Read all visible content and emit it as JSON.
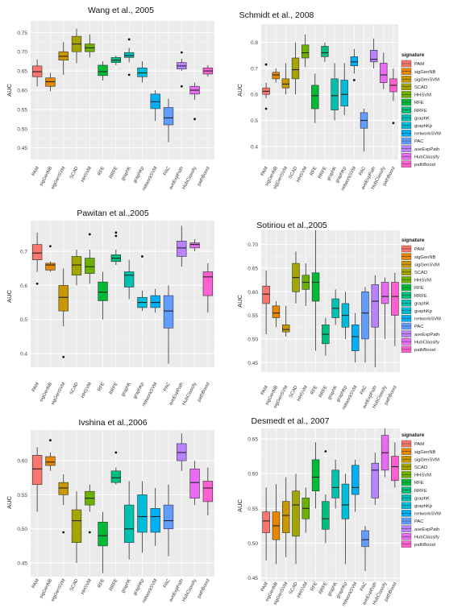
{
  "chart_data": [
    {
      "type": "box",
      "title": "Wang et al., 2005",
      "ylabel": "AUC",
      "ylim": [
        0.42,
        0.78
      ],
      "yticks": [
        0.45,
        0.5,
        0.55,
        0.6,
        0.65,
        0.7,
        0.75
      ],
      "ytick_labels": [
        "0.45",
        "0.50",
        "0.55",
        "0.60",
        "0.65",
        "0.70",
        "0.75"
      ],
      "grid": true,
      "legend": false,
      "categories": [
        "PAM",
        "sigGenNB",
        "sigGenSVM",
        "SCAD",
        "HHSVM",
        "RFE",
        "RRFE",
        "graphK",
        "graphKp",
        "networkSVM",
        "PAC",
        "aveExpPath",
        "HubClassify",
        "pathBoost"
      ],
      "boxes": [
        {
          "min": 0.61,
          "q1": 0.635,
          "median": 0.648,
          "q3": 0.663,
          "max": 0.68,
          "outliers": []
        },
        {
          "min": 0.597,
          "q1": 0.61,
          "median": 0.622,
          "q3": 0.632,
          "max": 0.645,
          "outliers": []
        },
        {
          "min": 0.64,
          "q1": 0.678,
          "median": 0.688,
          "q3": 0.7,
          "max": 0.725,
          "outliers": []
        },
        {
          "min": 0.67,
          "q1": 0.7,
          "median": 0.72,
          "q3": 0.74,
          "max": 0.76,
          "outliers": []
        },
        {
          "min": 0.685,
          "q1": 0.7,
          "median": 0.71,
          "q3": 0.72,
          "max": 0.745,
          "outliers": []
        },
        {
          "min": 0.625,
          "q1": 0.638,
          "median": 0.648,
          "q3": 0.665,
          "max": 0.675,
          "outliers": []
        },
        {
          "min": 0.665,
          "q1": 0.672,
          "median": 0.678,
          "q3": 0.685,
          "max": 0.69,
          "outliers": []
        },
        {
          "min": 0.672,
          "q1": 0.685,
          "median": 0.69,
          "q3": 0.698,
          "max": 0.71,
          "outliers": [
            0.732,
            0.64
          ]
        },
        {
          "min": 0.62,
          "q1": 0.635,
          "median": 0.645,
          "q3": 0.658,
          "max": 0.675,
          "outliers": []
        },
        {
          "min": 0.52,
          "q1": 0.552,
          "median": 0.57,
          "q3": 0.59,
          "max": 0.6,
          "outliers": []
        },
        {
          "min": 0.465,
          "q1": 0.51,
          "median": 0.528,
          "q3": 0.555,
          "max": 0.578,
          "outliers": []
        },
        {
          "min": 0.65,
          "q1": 0.655,
          "median": 0.663,
          "q3": 0.672,
          "max": 0.682,
          "outliers": [
            0.698,
            0.61
          ]
        },
        {
          "min": 0.575,
          "q1": 0.59,
          "median": 0.6,
          "q3": 0.61,
          "max": 0.62,
          "outliers": [
            0.525
          ]
        },
        {
          "min": 0.635,
          "q1": 0.642,
          "median": 0.65,
          "q3": 0.658,
          "max": 0.665,
          "outliers": []
        }
      ]
    },
    {
      "type": "box",
      "title": "Schmidt et al., 2008",
      "ylabel": "AUC",
      "ylim": [
        0.35,
        0.87
      ],
      "yticks": [
        0.4,
        0.5,
        0.6,
        0.7,
        0.8
      ],
      "ytick_labels": [
        "0.4",
        "0.5",
        "0.6",
        "0.7",
        "0.8"
      ],
      "grid": true,
      "legend": true,
      "legend_position": "right",
      "categories": [
        "PAM",
        "sigGenNB",
        "sigGenSVM",
        "SCAD",
        "HHSVM",
        "RFE",
        "RRFE",
        "graphK",
        "graphKp",
        "networkSVM",
        "PAC",
        "aveExpPath",
        "HubClassify",
        "pathBoost"
      ],
      "boxes": [
        {
          "min": 0.585,
          "q1": 0.6,
          "median": 0.612,
          "q3": 0.625,
          "max": 0.645,
          "outliers": [
            0.715,
            0.545
          ]
        },
        {
          "min": 0.645,
          "q1": 0.66,
          "median": 0.675,
          "q3": 0.685,
          "max": 0.7,
          "outliers": []
        },
        {
          "min": 0.6,
          "q1": 0.625,
          "median": 0.64,
          "q3": 0.66,
          "max": 0.72,
          "outliers": []
        },
        {
          "min": 0.6,
          "q1": 0.66,
          "median": 0.695,
          "q3": 0.74,
          "max": 0.8,
          "outliers": []
        },
        {
          "min": 0.705,
          "q1": 0.74,
          "median": 0.76,
          "q3": 0.79,
          "max": 0.83,
          "outliers": []
        },
        {
          "min": 0.49,
          "q1": 0.545,
          "median": 0.595,
          "q3": 0.635,
          "max": 0.68,
          "outliers": []
        },
        {
          "min": 0.725,
          "q1": 0.745,
          "median": 0.76,
          "q3": 0.785,
          "max": 0.8,
          "outliers": []
        },
        {
          "min": 0.5,
          "q1": 0.54,
          "median": 0.595,
          "q3": 0.66,
          "max": 0.72,
          "outliers": []
        },
        {
          "min": 0.52,
          "q1": 0.555,
          "median": 0.6,
          "q3": 0.655,
          "max": 0.72,
          "outliers": []
        },
        {
          "min": 0.68,
          "q1": 0.71,
          "median": 0.725,
          "q3": 0.745,
          "max": 0.775,
          "outliers": [
            0.655
          ]
        },
        {
          "min": 0.38,
          "q1": 0.47,
          "median": 0.5,
          "q3": 0.53,
          "max": 0.545,
          "outliers": []
        },
        {
          "min": 0.7,
          "q1": 0.725,
          "median": 0.735,
          "q3": 0.77,
          "max": 0.815,
          "outliers": []
        },
        {
          "min": 0.62,
          "q1": 0.645,
          "median": 0.675,
          "q3": 0.72,
          "max": 0.76,
          "outliers": []
        },
        {
          "min": 0.575,
          "q1": 0.61,
          "median": 0.635,
          "q3": 0.66,
          "max": 0.7,
          "outliers": [
            0.49
          ]
        }
      ]
    },
    {
      "type": "box",
      "title": "Pawitan et al.,2005",
      "ylabel": "AUC",
      "ylim": [
        0.36,
        0.79
      ],
      "yticks": [
        0.4,
        0.5,
        0.6,
        0.7
      ],
      "ytick_labels": [
        "0.4",
        "0.5",
        "0.6",
        "0.7"
      ],
      "grid": true,
      "legend": false,
      "categories": [
        "PAM",
        "sigGenNB",
        "sigGenSVM",
        "SCAD",
        "HHSVM",
        "RFE",
        "RRFE",
        "graphK",
        "graphKp",
        "networkSVM",
        "PAC",
        "aveExpPath",
        "HubClassify",
        "pathBoost"
      ],
      "boxes": [
        {
          "min": 0.64,
          "q1": 0.675,
          "median": 0.695,
          "q3": 0.72,
          "max": 0.755,
          "outliers": [
            0.605
          ]
        },
        {
          "min": 0.64,
          "q1": 0.645,
          "median": 0.66,
          "q3": 0.665,
          "max": 0.67,
          "outliers": [
            0.715
          ]
        },
        {
          "min": 0.48,
          "q1": 0.525,
          "median": 0.565,
          "q3": 0.6,
          "max": 0.65,
          "outliers": [
            0.39
          ]
        },
        {
          "min": 0.6,
          "q1": 0.63,
          "median": 0.66,
          "q3": 0.685,
          "max": 0.705,
          "outliers": []
        },
        {
          "min": 0.605,
          "q1": 0.635,
          "median": 0.655,
          "q3": 0.68,
          "max": 0.705,
          "outliers": [
            0.75
          ]
        },
        {
          "min": 0.5,
          "q1": 0.555,
          "median": 0.58,
          "q3": 0.61,
          "max": 0.64,
          "outliers": []
        },
        {
          "min": 0.66,
          "q1": 0.67,
          "median": 0.68,
          "q3": 0.69,
          "max": 0.705,
          "outliers": [
            0.755,
            0.745
          ]
        },
        {
          "min": 0.56,
          "q1": 0.595,
          "median": 0.63,
          "q3": 0.64,
          "max": 0.675,
          "outliers": []
        },
        {
          "min": 0.525,
          "q1": 0.535,
          "median": 0.55,
          "q3": 0.565,
          "max": 0.585,
          "outliers": [
            0.685
          ]
        },
        {
          "min": 0.52,
          "q1": 0.535,
          "median": 0.55,
          "q3": 0.57,
          "max": 0.59,
          "outliers": []
        },
        {
          "min": 0.37,
          "q1": 0.475,
          "median": 0.525,
          "q3": 0.57,
          "max": 0.6,
          "outliers": []
        },
        {
          "min": 0.655,
          "q1": 0.685,
          "median": 0.71,
          "q3": 0.73,
          "max": 0.775,
          "outliers": []
        },
        {
          "min": 0.7,
          "q1": 0.71,
          "median": 0.72,
          "q3": 0.725,
          "max": 0.735,
          "outliers": []
        },
        {
          "min": 0.52,
          "q1": 0.57,
          "median": 0.625,
          "q3": 0.64,
          "max": 0.665,
          "outliers": []
        }
      ]
    },
    {
      "type": "box",
      "title": "Sotiriou et al.,2005",
      "ylabel": "AUC",
      "ylim": [
        0.43,
        0.73
      ],
      "yticks": [
        0.45,
        0.5,
        0.55,
        0.6,
        0.65,
        0.7
      ],
      "ytick_labels": [
        "0.45",
        "0.50",
        "0.55",
        "0.60",
        "0.65",
        "0.70"
      ],
      "grid": true,
      "legend": true,
      "legend_position": "right",
      "categories": [
        "PAM",
        "sigGenNB",
        "sigGenSVM",
        "SCAD",
        "HHSVM",
        "RFE",
        "RRFE",
        "graphK",
        "graphKp",
        "networkSVM",
        "PAC",
        "aveExpPath",
        "HubClassify",
        "pathBoost"
      ],
      "boxes": [
        {
          "min": 0.51,
          "q1": 0.575,
          "median": 0.595,
          "q3": 0.612,
          "max": 0.645,
          "outliers": []
        },
        {
          "min": 0.525,
          "q1": 0.545,
          "median": 0.555,
          "q3": 0.57,
          "max": 0.58,
          "outliers": []
        },
        {
          "min": 0.505,
          "q1": 0.515,
          "median": 0.52,
          "q3": 0.53,
          "max": 0.57,
          "outliers": []
        },
        {
          "min": 0.575,
          "q1": 0.6,
          "median": 0.63,
          "q3": 0.66,
          "max": 0.685,
          "outliers": []
        },
        {
          "min": 0.57,
          "q1": 0.605,
          "median": 0.62,
          "q3": 0.635,
          "max": 0.66,
          "outliers": []
        },
        {
          "min": 0.475,
          "q1": 0.58,
          "median": 0.62,
          "q3": 0.64,
          "max": 0.73,
          "outliers": []
        },
        {
          "min": 0.465,
          "q1": 0.49,
          "median": 0.51,
          "q3": 0.53,
          "max": 0.545,
          "outliers": []
        },
        {
          "min": 0.53,
          "q1": 0.545,
          "median": 0.565,
          "q3": 0.585,
          "max": 0.605,
          "outliers": []
        },
        {
          "min": 0.5,
          "q1": 0.525,
          "median": 0.55,
          "q3": 0.575,
          "max": 0.6,
          "outliers": []
        },
        {
          "min": 0.45,
          "q1": 0.475,
          "median": 0.505,
          "q3": 0.53,
          "max": 0.555,
          "outliers": []
        },
        {
          "min": 0.45,
          "q1": 0.5,
          "median": 0.555,
          "q3": 0.6,
          "max": 0.61,
          "outliers": []
        },
        {
          "min": 0.44,
          "q1": 0.525,
          "median": 0.58,
          "q3": 0.615,
          "max": 0.635,
          "outliers": []
        },
        {
          "min": 0.5,
          "q1": 0.575,
          "median": 0.59,
          "q3": 0.62,
          "max": 0.63,
          "outliers": []
        },
        {
          "min": 0.485,
          "q1": 0.55,
          "median": 0.59,
          "q3": 0.62,
          "max": 0.64,
          "outliers": []
        }
      ]
    },
    {
      "type": "box",
      "title": "Ivshina et al.,2006",
      "ylabel": "AUC",
      "ylim": [
        0.43,
        0.645
      ],
      "yticks": [
        0.45,
        0.5,
        0.55,
        0.6
      ],
      "ytick_labels": [
        "0.45",
        "0.50",
        "0.55",
        "0.60"
      ],
      "grid": true,
      "legend": false,
      "categories": [
        "PAM",
        "sigGenNB",
        "sigGenSVM",
        "SCAD",
        "HHSVM",
        "RFE",
        "RRFE",
        "graphK",
        "graphKp",
        "networkSVM",
        "PAC",
        "aveExpPath",
        "HubClassify",
        "pathBoost"
      ],
      "boxes": [
        {
          "min": 0.525,
          "q1": 0.565,
          "median": 0.588,
          "q3": 0.608,
          "max": 0.62,
          "outliers": []
        },
        {
          "min": 0.585,
          "q1": 0.593,
          "median": 0.598,
          "q3": 0.606,
          "max": 0.612,
          "outliers": [
            0.63
          ]
        },
        {
          "min": 0.535,
          "q1": 0.55,
          "median": 0.56,
          "q3": 0.568,
          "max": 0.58,
          "outliers": [
            0.495
          ]
        },
        {
          "min": 0.45,
          "q1": 0.48,
          "median": 0.512,
          "q3": 0.528,
          "max": 0.555,
          "outliers": []
        },
        {
          "min": 0.525,
          "q1": 0.535,
          "median": 0.545,
          "q3": 0.555,
          "max": 0.565,
          "outliers": [
            0.495
          ]
        },
        {
          "min": 0.435,
          "q1": 0.475,
          "median": 0.49,
          "q3": 0.51,
          "max": 0.525,
          "outliers": []
        },
        {
          "min": 0.565,
          "q1": 0.568,
          "median": 0.575,
          "q3": 0.585,
          "max": 0.59,
          "outliers": [
            0.612
          ]
        },
        {
          "min": 0.455,
          "q1": 0.48,
          "median": 0.5,
          "q3": 0.535,
          "max": 0.57,
          "outliers": []
        },
        {
          "min": 0.465,
          "q1": 0.495,
          "median": 0.518,
          "q3": 0.55,
          "max": 0.57,
          "outliers": []
        },
        {
          "min": 0.475,
          "q1": 0.495,
          "median": 0.518,
          "q3": 0.53,
          "max": 0.56,
          "outliers": []
        },
        {
          "min": 0.46,
          "q1": 0.5,
          "median": 0.512,
          "q3": 0.535,
          "max": 0.565,
          "outliers": []
        },
        {
          "min": 0.585,
          "q1": 0.6,
          "median": 0.612,
          "q3": 0.625,
          "max": 0.64,
          "outliers": []
        },
        {
          "min": 0.535,
          "q1": 0.545,
          "median": 0.568,
          "q3": 0.588,
          "max": 0.6,
          "outliers": []
        },
        {
          "min": 0.52,
          "q1": 0.54,
          "median": 0.56,
          "q3": 0.57,
          "max": 0.59,
          "outliers": []
        }
      ]
    },
    {
      "type": "box",
      "title": "Desmedt et al., 2007",
      "ylabel": "AUC",
      "ylim": [
        0.445,
        0.665
      ],
      "yticks": [
        0.45,
        0.5,
        0.55,
        0.6,
        0.65
      ],
      "ytick_labels": [
        "0.45",
        "0.50",
        "0.55",
        "0.60",
        "0.65"
      ],
      "grid": true,
      "legend": true,
      "legend_position": "right",
      "categories": [
        "PAM",
        "sigGenNB",
        "sigGenSVM",
        "SCAD",
        "HHSVM",
        "RFE",
        "RRFE",
        "graphK",
        "graphKp",
        "networkSVM",
        "PAC",
        "aveExpPath",
        "HubClassify",
        "pathBoost"
      ],
      "boxes": [
        {
          "min": 0.475,
          "q1": 0.515,
          "median": 0.532,
          "q3": 0.545,
          "max": 0.58,
          "outliers": []
        },
        {
          "min": 0.47,
          "q1": 0.505,
          "median": 0.525,
          "q3": 0.545,
          "max": 0.585,
          "outliers": []
        },
        {
          "min": 0.48,
          "q1": 0.515,
          "median": 0.54,
          "q3": 0.56,
          "max": 0.595,
          "outliers": []
        },
        {
          "min": 0.47,
          "q1": 0.51,
          "median": 0.555,
          "q3": 0.575,
          "max": 0.6,
          "outliers": []
        },
        {
          "min": 0.515,
          "q1": 0.535,
          "median": 0.55,
          "q3": 0.565,
          "max": 0.58,
          "outliers": []
        },
        {
          "min": 0.55,
          "q1": 0.575,
          "median": 0.595,
          "q3": 0.62,
          "max": 0.645,
          "outliers": []
        },
        {
          "min": 0.5,
          "q1": 0.52,
          "median": 0.535,
          "q3": 0.56,
          "max": 0.57,
          "outliers": [
            0.632
          ]
        },
        {
          "min": 0.55,
          "q1": 0.565,
          "median": 0.58,
          "q3": 0.605,
          "max": 0.62,
          "outliers": []
        },
        {
          "min": 0.47,
          "q1": 0.535,
          "median": 0.555,
          "q3": 0.585,
          "max": 0.6,
          "outliers": []
        },
        {
          "min": 0.545,
          "q1": 0.57,
          "median": 0.58,
          "q3": 0.612,
          "max": 0.62,
          "outliers": []
        },
        {
          "min": 0.46,
          "q1": 0.495,
          "median": 0.505,
          "q3": 0.518,
          "max": 0.525,
          "outliers": []
        },
        {
          "min": 0.555,
          "q1": 0.565,
          "median": 0.605,
          "q3": 0.615,
          "max": 0.63,
          "outliers": []
        },
        {
          "min": 0.595,
          "q1": 0.605,
          "median": 0.63,
          "q3": 0.655,
          "max": 0.665,
          "outliers": []
        },
        {
          "min": 0.58,
          "q1": 0.59,
          "median": 0.61,
          "q3": 0.625,
          "max": 0.645,
          "outliers": []
        }
      ]
    }
  ],
  "legend": {
    "title": "signature",
    "entries": [
      "PAM",
      "sigGenNB",
      "sigGenSVM",
      "SCAD",
      "HHSVM",
      "RFE",
      "RRFE",
      "graphK",
      "graphKp",
      "networkSVM",
      "PAC",
      "aveExpPath",
      "HubClassify",
      "pathBoost"
    ]
  },
  "colors": [
    "#f8766d",
    "#e58700",
    "#c99800",
    "#a3a500",
    "#6bb100",
    "#00ba38",
    "#00bf7d",
    "#00c0af",
    "#00bcd8",
    "#00b0f6",
    "#619cff",
    "#b983ff",
    "#e76bf3",
    "#fd61d1"
  ],
  "panel_background": "#ebebeb",
  "grid_color": "#ffffff"
}
